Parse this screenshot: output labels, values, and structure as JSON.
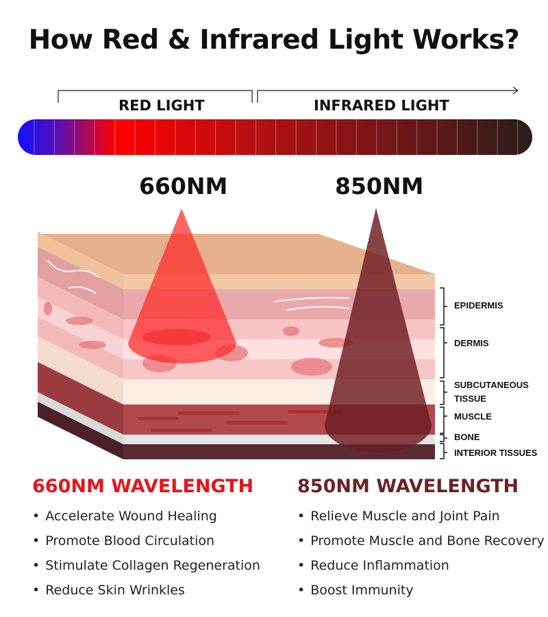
{
  "title": "How Red & Infrared Light Works?",
  "spectrum": {
    "red_label": "RED LIGHT",
    "infrared_label": "INFRARED LIGHT"
  },
  "wavelengths": {
    "red": "660NM",
    "infrared": "850NM"
  },
  "layers": [
    "EPIDERMIS",
    "DERMIS",
    "SUBCUTANEOUS",
    "TISSUE",
    "MUSCLE",
    "BONE",
    "INTERIOR TISSUES"
  ],
  "red_section": {
    "heading": "660NM WAVELENGTH",
    "color": "#e8141c",
    "benefits": [
      "Accelerate Wound Healing",
      "Promote Blood Circulation",
      "Stimulate Collagen Regeneration",
      "Reduce Skin Wrinkles"
    ]
  },
  "infrared_section": {
    "heading": "850NM WAVELENGTH",
    "color": "#6b2326",
    "benefits": [
      "Relieve Muscle and Joint Pain",
      "Promote Muscle and Bone Recovery",
      "Reduce Inflammation",
      "Boost Immunity"
    ]
  }
}
